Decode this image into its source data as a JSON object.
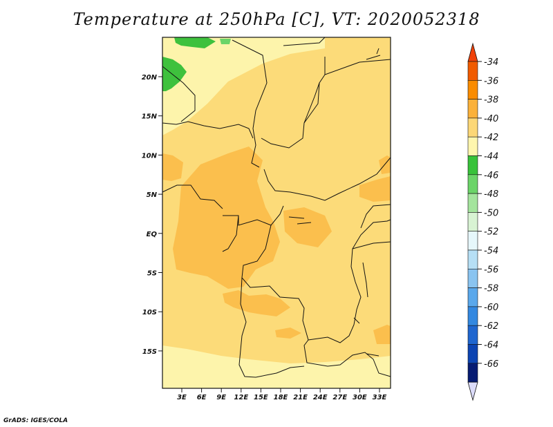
{
  "title": "Temperature at 250hPa [C], VT: 2020052318",
  "credit": "GrADS: IGES/COLA",
  "lat_labels": [
    "20N",
    "15N",
    "10N",
    "5N",
    "EQ",
    "5S",
    "10S",
    "15S"
  ],
  "lon_labels": [
    "3E",
    "6E",
    "9E",
    "12E",
    "15E",
    "18E",
    "21E",
    "24E",
    "27E",
    "30E",
    "33E"
  ],
  "legend": {
    "levels": [
      "-34",
      "-36",
      "-38",
      "-40",
      "-42",
      "-44",
      "-46",
      "-48",
      "-50",
      "-52",
      "-54",
      "-56",
      "-58",
      "-60",
      "-62",
      "-64",
      "-66"
    ],
    "colors": [
      "#f05b00",
      "#fa8c00",
      "#fbb13a",
      "#fcd777",
      "#fef6ae",
      "#38c23a",
      "#6bd468",
      "#a4e49d",
      "#d8f3d3",
      "#e6f7fb",
      "#b6dff5",
      "#8ac4f0",
      "#5aa8eb",
      "#3388e0",
      "#1f66cf",
      "#0c44b2",
      "#061b72"
    ],
    "top_color": "#f0420a",
    "bottom_color": "#dcdcfa"
  },
  "colors": {
    "c40": "#fcdb79",
    "c42": "#fdf4ab",
    "c38": "#fbbf4d",
    "c44": "#3ec13d",
    "c46": "#6bd468"
  }
}
